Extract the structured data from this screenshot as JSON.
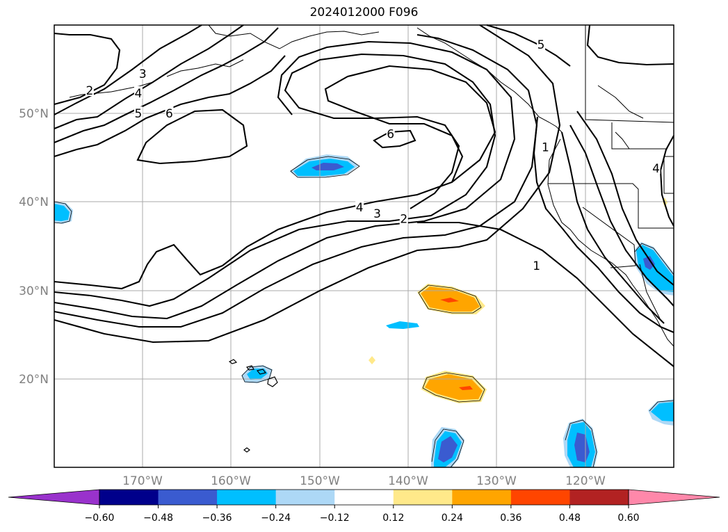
{
  "title": "2024012000 F096",
  "axes": {
    "lon_labels": [
      "170°W",
      "160°W",
      "150°W",
      "140°W",
      "130°W",
      "120°W"
    ],
    "lat_labels": [
      "50°N",
      "40°N",
      "30°N",
      "20°N"
    ],
    "lon_ticks": [
      -170,
      -160,
      -150,
      -140,
      -130,
      -120
    ],
    "lat_ticks": [
      50,
      40,
      30,
      20
    ],
    "lon_range": [
      -180,
      -110
    ],
    "lat_range": [
      10,
      60
    ],
    "grid": true
  },
  "colorbar": {
    "levels": [
      "−0.60",
      "−0.48",
      "−0.36",
      "−0.24",
      "−0.12",
      "0.12",
      "0.24",
      "0.36",
      "0.48",
      "0.60"
    ],
    "colors": [
      "#9932cc",
      "#00008b",
      "#3a5bd0",
      "#00bfff",
      "#add8f6",
      "#ffffff",
      "#ffe98a",
      "#ffa500",
      "#ff4500",
      "#b22222",
      "#ff88aa"
    ],
    "extend": "both"
  },
  "contour_labels": [
    {
      "text": "2",
      "lon": -176,
      "lat": 52.6
    },
    {
      "text": "3",
      "lon": -170,
      "lat": 54.5
    },
    {
      "text": "4",
      "lon": -170.5,
      "lat": 52.3
    },
    {
      "text": "5",
      "lon": -170.5,
      "lat": 50.0
    },
    {
      "text": "6",
      "lon": -167,
      "lat": 50.0
    },
    {
      "text": "6",
      "lon": -142,
      "lat": 47.7
    },
    {
      "text": "4",
      "lon": -145.5,
      "lat": 39.4
    },
    {
      "text": "3",
      "lon": -143.5,
      "lat": 38.7
    },
    {
      "text": "2",
      "lon": -140.5,
      "lat": 38.1
    },
    {
      "text": "1",
      "lon": -124.5,
      "lat": 46.2
    },
    {
      "text": "1",
      "lon": -125.5,
      "lat": 32.8
    },
    {
      "text": "5",
      "lon": -125,
      "lat": 57.8
    },
    {
      "text": "4",
      "lon": -112,
      "lat": 43.8
    }
  ]
}
